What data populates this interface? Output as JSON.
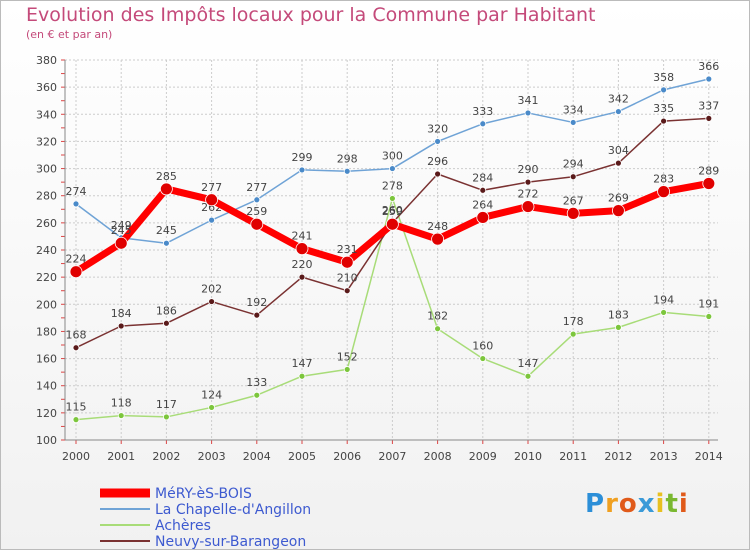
{
  "header": {
    "title": "Evolution des Impôts locaux pour la Commune par Habitant",
    "subtitle": "(en € et par an)"
  },
  "logo": {
    "text": "Proxiti",
    "letters": [
      "P",
      "r",
      "o",
      "x",
      "i",
      "t",
      "i"
    ],
    "colors": [
      "#2c8fd8",
      "#f0a020",
      "#e05a1a",
      "#3a9ad8",
      "#e8c020",
      "#7ab830",
      "#e05a1a"
    ]
  },
  "chart_data": {
    "type": "line",
    "title": "Evolution des Impôts locaux pour la Commune par Habitant",
    "subtitle": "(en € et par an)",
    "xlabel": "",
    "ylabel": "",
    "ylim": [
      100,
      380
    ],
    "yticks": [
      100,
      120,
      140,
      160,
      180,
      200,
      220,
      240,
      260,
      280,
      300,
      320,
      340,
      360,
      380
    ],
    "grid": true,
    "legend_position": "bottom-left",
    "x": [
      "2000",
      "2001",
      "2002",
      "2003",
      "2004",
      "2005",
      "2006",
      "2007",
      "2008",
      "2009",
      "2010",
      "2011",
      "2012",
      "2013",
      "2014"
    ],
    "series": [
      {
        "name": "MéRY-èS-BOIS",
        "color": "#ff0000",
        "marker": "#e00000",
        "values": [
          224,
          245,
          285,
          277,
          259,
          241,
          231,
          259,
          248,
          264,
          272,
          267,
          269,
          283,
          289
        ],
        "labels": [
          "224",
          "245",
          "285",
          "277",
          "259",
          "241",
          "231",
          "259",
          "248",
          "264",
          "272",
          "267",
          "269",
          "283",
          "289"
        ]
      },
      {
        "name": "La Chapelle-d'Angillon",
        "color": "#6fa3d6",
        "marker": "#4a8ac9",
        "values": [
          274,
          249,
          245,
          262,
          277,
          299,
          298,
          300,
          320,
          333,
          341,
          334,
          342,
          358,
          366
        ],
        "labels": [
          "274",
          "249",
          "245",
          "262",
          "277",
          "299",
          "298",
          "300",
          "320",
          "333",
          "341",
          "334",
          "342",
          "358",
          "366"
        ]
      },
      {
        "name": "Achères",
        "color": "#a8dc78",
        "marker": "#7cc63c",
        "values": [
          115,
          118,
          117,
          124,
          133,
          147,
          152,
          278,
          182,
          160,
          147,
          178,
          183,
          194,
          191
        ],
        "labels": [
          "115",
          "118",
          "117",
          "124",
          "133",
          "147",
          "152",
          "278",
          "182",
          "160",
          "147",
          "178",
          "183",
          "194",
          "191"
        ]
      },
      {
        "name": "Neuvy-sur-Barangeon",
        "color": "#7a3232",
        "marker": "#5a1a1a",
        "values": [
          168,
          184,
          186,
          202,
          192,
          220,
          210,
          260,
          296,
          284,
          290,
          294,
          304,
          335,
          337
        ],
        "labels": [
          "168",
          "184",
          "186",
          "202",
          "192",
          "220",
          "210",
          "260",
          "296",
          "284",
          "290",
          "294",
          "304",
          "335",
          "337"
        ]
      }
    ]
  }
}
